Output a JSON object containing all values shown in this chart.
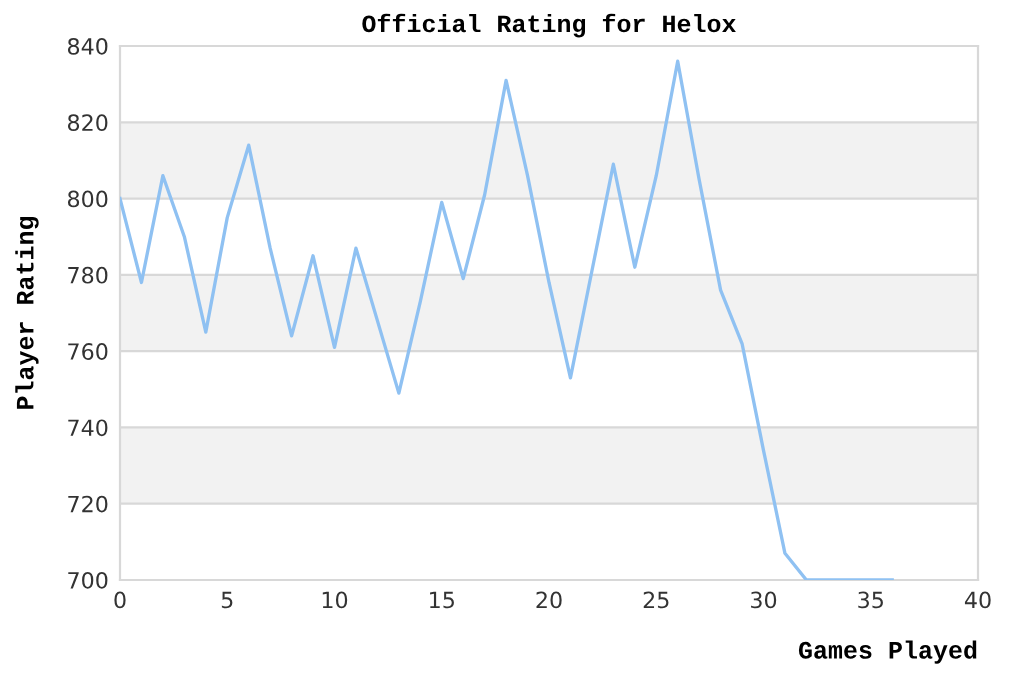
{
  "chart_data": {
    "type": "line",
    "title": "Official Rating for Helox",
    "xlabel": "Games Played",
    "ylabel": "Player Rating",
    "x": [
      0,
      1,
      2,
      3,
      4,
      5,
      6,
      7,
      8,
      9,
      10,
      11,
      12,
      13,
      14,
      15,
      16,
      17,
      18,
      19,
      20,
      21,
      22,
      23,
      24,
      25,
      26,
      27,
      28,
      29,
      30,
      31,
      32,
      33,
      34,
      35,
      36
    ],
    "series": [
      {
        "color": "#8fc1f2",
        "values": [
          800,
          778,
          806,
          790,
          765,
          795,
          814,
          787,
          764,
          785,
          761,
          787,
          768,
          749,
          773,
          799,
          779,
          801,
          831,
          806,
          778,
          753,
          781,
          809,
          782,
          806,
          836,
          805,
          776,
          762,
          734,
          707,
          700,
          700,
          700,
          700,
          700
        ]
      }
    ],
    "xlim": [
      0,
      40
    ],
    "xticks": [
      0,
      5,
      10,
      15,
      20,
      25,
      30,
      35,
      40
    ],
    "ylim": [
      700,
      840
    ],
    "yticks": [
      700,
      720,
      740,
      760,
      780,
      800,
      820,
      840
    ],
    "grid": "y",
    "marker": "none",
    "line_style": "solid",
    "bands": [
      {
        "axis": "y",
        "from": 720,
        "to": 740,
        "color": "#f2f2f2"
      },
      {
        "axis": "y",
        "from": 760,
        "to": 780,
        "color": "#f2f2f2"
      },
      {
        "axis": "y",
        "from": 800,
        "to": 820,
        "color": "#f2f2f2"
      }
    ]
  }
}
